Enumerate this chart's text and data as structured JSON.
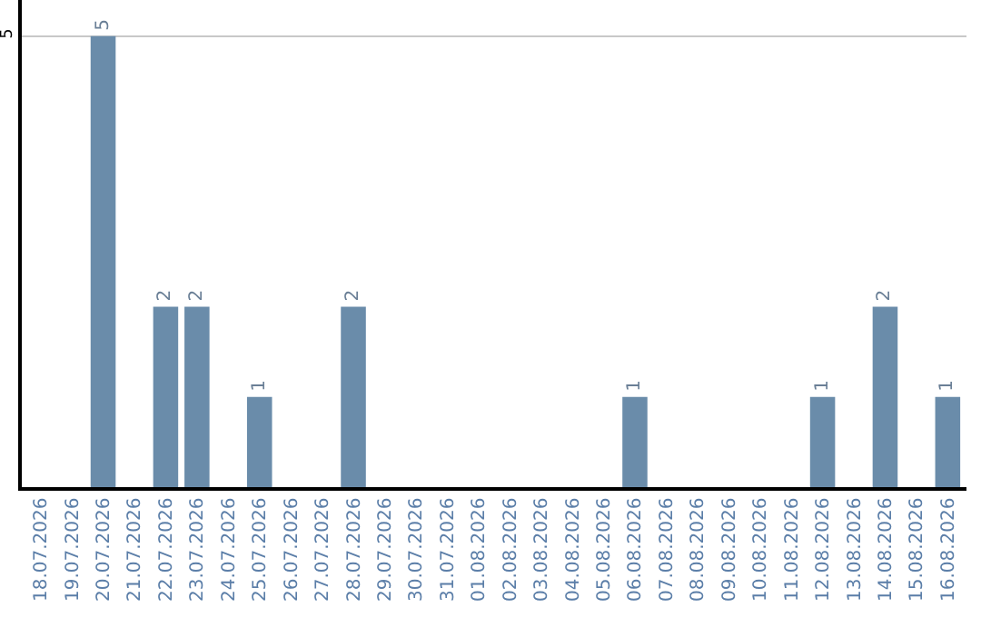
{
  "chart_data": {
    "type": "bar",
    "categories": [
      "18.07.2026",
      "19.07.2026",
      "20.07.2026",
      "21.07.2026",
      "22.07.2026",
      "23.07.2026",
      "24.07.2026",
      "25.07.2026",
      "26.07.2026",
      "27.07.2026",
      "28.07.2026",
      "29.07.2026",
      "30.07.2026",
      "31.07.2026",
      "01.08.2026",
      "02.08.2026",
      "03.08.2026",
      "04.08.2026",
      "05.08.2026",
      "06.08.2026",
      "07.08.2026",
      "08.08.2026",
      "09.08.2026",
      "10.08.2026",
      "11.08.2026",
      "12.08.2026",
      "13.08.2026",
      "14.08.2026",
      "15.08.2026",
      "16.08.2026"
    ],
    "values": [
      null,
      null,
      5,
      null,
      2,
      2,
      null,
      1,
      null,
      null,
      2,
      null,
      null,
      null,
      null,
      null,
      null,
      null,
      null,
      1,
      null,
      null,
      null,
      null,
      null,
      1,
      null,
      2,
      null,
      1
    ],
    "color": "#6a8caa",
    "ylim": [
      0,
      5.4
    ],
    "yticks": [
      5
    ],
    "grid": "y",
    "data_labels": true
  }
}
